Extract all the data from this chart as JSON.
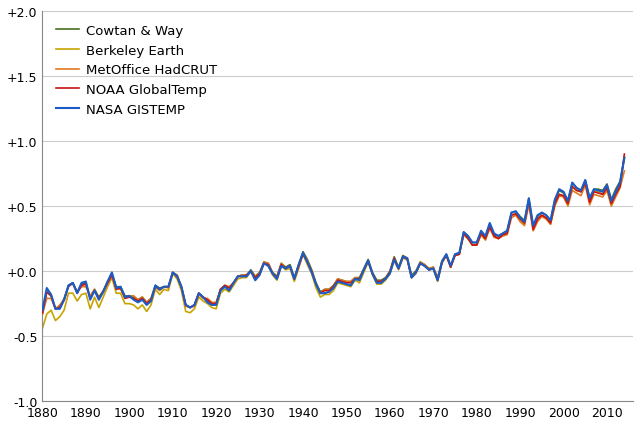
{
  "series_names": [
    "Cowtan & Way",
    "Berkeley Earth",
    "MetOffice HadCRUT",
    "NOAA GlobalTemp",
    "NASA GISTEMP"
  ],
  "series_keys": [
    "cowtan",
    "berkeley",
    "hadcrut",
    "noaa",
    "gistemp"
  ],
  "series_colors": [
    "#4a6e20",
    "#c8a400",
    "#e07820",
    "#cc1111",
    "#1a5cc8"
  ],
  "series_linewidths": [
    1.2,
    1.2,
    1.2,
    1.2,
    1.5
  ],
  "series_zorders": [
    3,
    2,
    4,
    5,
    6
  ],
  "xlim": [
    1880,
    2016
  ],
  "ylim": [
    -1.05,
    2.1
  ],
  "yticks": [
    -1.0,
    -0.5,
    0.0,
    0.5,
    1.0,
    1.5,
    2.0
  ],
  "ytick_labels": [
    "-1.0",
    "-0.5",
    "+0.0",
    "+0.5",
    "+1.0",
    "+1.5",
    "+2.0"
  ],
  "xticks": [
    1880,
    1890,
    1900,
    1910,
    1920,
    1930,
    1940,
    1950,
    1960,
    1970,
    1980,
    1990,
    2000,
    2010
  ],
  "background_color": "#ffffff",
  "grid_color": "#cccccc",
  "legend_fontsize": 9.5,
  "tick_fontsize": 9,
  "gistemp_c": [
    -0.3,
    -0.13,
    -0.18,
    -0.29,
    -0.29,
    -0.22,
    -0.11,
    -0.09,
    -0.17,
    -0.09,
    -0.08,
    -0.22,
    -0.15,
    -0.22,
    -0.16,
    -0.08,
    -0.01,
    -0.13,
    -0.12,
    -0.2,
    -0.19,
    -0.22,
    -0.24,
    -0.22,
    -0.26,
    -0.23,
    -0.11,
    -0.14,
    -0.12,
    -0.12,
    -0.01,
    -0.04,
    -0.12,
    -0.26,
    -0.28,
    -0.26,
    -0.17,
    -0.2,
    -0.24,
    -0.26,
    -0.26,
    -0.15,
    -0.12,
    -0.15,
    -0.09,
    -0.04,
    -0.04,
    -0.04,
    0.0,
    -0.07,
    -0.03,
    0.06,
    0.04,
    -0.02,
    -0.06,
    0.04,
    0.02,
    0.04,
    -0.06,
    0.05,
    0.14,
    0.07,
    -0.01,
    -0.1,
    -0.17,
    -0.17,
    -0.16,
    -0.13,
    -0.08,
    -0.09,
    -0.1,
    -0.11,
    -0.06,
    -0.07,
    0.01,
    0.08,
    -0.02,
    -0.09,
    -0.09,
    -0.06,
    -0.02,
    0.09,
    0.02,
    0.11,
    0.1,
    -0.05,
    -0.01,
    0.06,
    0.04,
    0.01,
    0.02,
    -0.07,
    0.07,
    0.13,
    0.04,
    0.13,
    0.14,
    0.3,
    0.27,
    0.22,
    0.22,
    0.31,
    0.27,
    0.37,
    0.29,
    0.27,
    0.29,
    0.31,
    0.45,
    0.46,
    0.41,
    0.38,
    0.56,
    0.35,
    0.43,
    0.45,
    0.43,
    0.39,
    0.55,
    0.63,
    0.61,
    0.54,
    0.68,
    0.64,
    0.62,
    0.7,
    0.56,
    0.63,
    0.62,
    0.61,
    0.66,
    0.54,
    0.61,
    0.68,
    0.87
  ],
  "hadcrut_c": [
    -0.33,
    -0.21,
    -0.21,
    -0.29,
    -0.26,
    -0.22,
    -0.11,
    -0.1,
    -0.16,
    -0.12,
    -0.12,
    -0.19,
    -0.14,
    -0.22,
    -0.15,
    -0.1,
    -0.04,
    -0.13,
    -0.14,
    -0.2,
    -0.19,
    -0.19,
    -0.22,
    -0.2,
    -0.24,
    -0.21,
    -0.12,
    -0.15,
    -0.12,
    -0.13,
    -0.02,
    -0.03,
    -0.13,
    -0.27,
    -0.28,
    -0.27,
    -0.18,
    -0.21,
    -0.21,
    -0.24,
    -0.24,
    -0.14,
    -0.11,
    -0.12,
    -0.09,
    -0.04,
    -0.03,
    -0.03,
    0.0,
    -0.04,
    -0.02,
    0.07,
    0.06,
    -0.02,
    -0.05,
    0.06,
    0.02,
    0.04,
    -0.06,
    0.03,
    0.14,
    0.08,
    0.0,
    -0.1,
    -0.17,
    -0.14,
    -0.14,
    -0.12,
    -0.06,
    -0.07,
    -0.08,
    -0.08,
    -0.05,
    -0.06,
    0.01,
    0.07,
    -0.02,
    -0.08,
    -0.08,
    -0.06,
    -0.01,
    0.1,
    0.02,
    0.11,
    0.1,
    -0.04,
    -0.01,
    0.07,
    0.05,
    0.02,
    0.03,
    -0.06,
    0.07,
    0.12,
    0.03,
    0.12,
    0.13,
    0.28,
    0.25,
    0.2,
    0.2,
    0.28,
    0.24,
    0.33,
    0.26,
    0.25,
    0.27,
    0.28,
    0.41,
    0.43,
    0.38,
    0.35,
    0.51,
    0.31,
    0.38,
    0.42,
    0.4,
    0.36,
    0.5,
    0.58,
    0.57,
    0.5,
    0.62,
    0.6,
    0.58,
    0.66,
    0.51,
    0.59,
    0.58,
    0.57,
    0.62,
    0.5,
    0.57,
    0.64,
    0.77
  ],
  "noaa_c": [
    -0.32,
    -0.16,
    -0.19,
    -0.29,
    -0.28,
    -0.22,
    -0.12,
    -0.09,
    -0.17,
    -0.11,
    -0.1,
    -0.21,
    -0.15,
    -0.21,
    -0.16,
    -0.09,
    -0.03,
    -0.14,
    -0.13,
    -0.21,
    -0.2,
    -0.21,
    -0.23,
    -0.21,
    -0.25,
    -0.22,
    -0.12,
    -0.14,
    -0.12,
    -0.12,
    -0.01,
    -0.04,
    -0.12,
    -0.26,
    -0.28,
    -0.26,
    -0.17,
    -0.2,
    -0.22,
    -0.25,
    -0.25,
    -0.14,
    -0.11,
    -0.13,
    -0.09,
    -0.04,
    -0.04,
    -0.03,
    0.0,
    -0.05,
    -0.02,
    0.06,
    0.05,
    -0.02,
    -0.05,
    0.05,
    0.02,
    0.04,
    -0.06,
    0.04,
    0.13,
    0.07,
    0.0,
    -0.1,
    -0.17,
    -0.15,
    -0.15,
    -0.12,
    -0.07,
    -0.08,
    -0.09,
    -0.09,
    -0.06,
    -0.06,
    0.01,
    0.08,
    -0.02,
    -0.08,
    -0.08,
    -0.06,
    -0.01,
    0.1,
    0.02,
    0.11,
    0.09,
    -0.05,
    -0.01,
    0.06,
    0.04,
    0.01,
    0.02,
    -0.07,
    0.07,
    0.12,
    0.03,
    0.12,
    0.13,
    0.29,
    0.25,
    0.2,
    0.2,
    0.29,
    0.25,
    0.34,
    0.27,
    0.25,
    0.28,
    0.29,
    0.43,
    0.44,
    0.4,
    0.37,
    0.54,
    0.32,
    0.4,
    0.43,
    0.41,
    0.37,
    0.52,
    0.59,
    0.58,
    0.52,
    0.65,
    0.62,
    0.61,
    0.68,
    0.53,
    0.61,
    0.6,
    0.59,
    0.64,
    0.52,
    0.59,
    0.65,
    0.9
  ],
  "berkeley_c": [
    -0.44,
    -0.33,
    -0.3,
    -0.38,
    -0.35,
    -0.3,
    -0.17,
    -0.17,
    -0.23,
    -0.18,
    -0.17,
    -0.29,
    -0.2,
    -0.28,
    -0.2,
    -0.12,
    -0.05,
    -0.17,
    -0.17,
    -0.25,
    -0.25,
    -0.26,
    -0.29,
    -0.26,
    -0.31,
    -0.26,
    -0.14,
    -0.18,
    -0.14,
    -0.15,
    -0.02,
    -0.06,
    -0.15,
    -0.31,
    -0.32,
    -0.29,
    -0.2,
    -0.23,
    -0.25,
    -0.28,
    -0.29,
    -0.17,
    -0.14,
    -0.16,
    -0.11,
    -0.06,
    -0.05,
    -0.05,
    0.0,
    -0.07,
    -0.03,
    0.06,
    0.04,
    -0.03,
    -0.07,
    0.04,
    0.01,
    0.02,
    -0.08,
    0.02,
    0.13,
    0.05,
    -0.02,
    -0.13,
    -0.2,
    -0.18,
    -0.18,
    -0.15,
    -0.09,
    -0.1,
    -0.11,
    -0.12,
    -0.07,
    -0.09,
    -0.01,
    0.07,
    -0.03,
    -0.1,
    -0.1,
    -0.07,
    -0.02,
    0.08,
    0.01,
    0.1,
    0.09,
    -0.05,
    -0.02,
    0.06,
    0.04,
    0.01,
    0.02,
    -0.08,
    0.06,
    0.12,
    0.03,
    0.12,
    0.13,
    0.28,
    0.25,
    0.2,
    0.2,
    0.28,
    0.24,
    0.34,
    0.27,
    0.25,
    0.28,
    0.29,
    0.43,
    0.44,
    0.4,
    0.36,
    0.54,
    0.32,
    0.4,
    0.43,
    0.41,
    0.36,
    0.52,
    0.59,
    0.57,
    0.51,
    0.65,
    0.62,
    0.61,
    0.69,
    0.53,
    0.62,
    0.61,
    0.59,
    0.63,
    0.51,
    0.59,
    0.66,
    0.88
  ],
  "cowtan_c": [
    -0.33,
    -0.16,
    -0.19,
    -0.29,
    -0.27,
    -0.21,
    -0.11,
    -0.09,
    -0.16,
    -0.1,
    -0.09,
    -0.2,
    -0.14,
    -0.2,
    -0.15,
    -0.08,
    -0.02,
    -0.12,
    -0.12,
    -0.19,
    -0.19,
    -0.2,
    -0.22,
    -0.2,
    -0.24,
    -0.21,
    -0.11,
    -0.13,
    -0.12,
    -0.12,
    -0.01,
    -0.03,
    -0.12,
    -0.26,
    -0.28,
    -0.26,
    -0.17,
    -0.2,
    -0.22,
    -0.25,
    -0.25,
    -0.14,
    -0.11,
    -0.13,
    -0.09,
    -0.04,
    -0.03,
    -0.03,
    0.01,
    -0.04,
    -0.01,
    0.07,
    0.06,
    -0.01,
    -0.04,
    0.06,
    0.03,
    0.05,
    -0.05,
    0.05,
    0.15,
    0.09,
    0.01,
    -0.09,
    -0.16,
    -0.14,
    -0.14,
    -0.11,
    -0.06,
    -0.07,
    -0.08,
    -0.08,
    -0.05,
    -0.05,
    0.02,
    0.09,
    -0.01,
    -0.07,
    -0.07,
    -0.05,
    0.0,
    0.11,
    0.03,
    0.12,
    0.1,
    -0.03,
    0.0,
    0.07,
    0.05,
    0.02,
    0.03,
    -0.05,
    0.08,
    0.13,
    0.04,
    0.13,
    0.14,
    0.3,
    0.27,
    0.22,
    0.22,
    0.3,
    0.26,
    0.36,
    0.28,
    0.27,
    0.29,
    0.31,
    0.45,
    0.46,
    0.42,
    0.39,
    0.56,
    0.34,
    0.42,
    0.45,
    0.43,
    0.39,
    0.55,
    0.62,
    0.6,
    0.54,
    0.68,
    0.64,
    0.62,
    0.7,
    0.56,
    0.63,
    0.63,
    0.62,
    0.67,
    0.55,
    0.63,
    0.69,
    0.87
  ]
}
